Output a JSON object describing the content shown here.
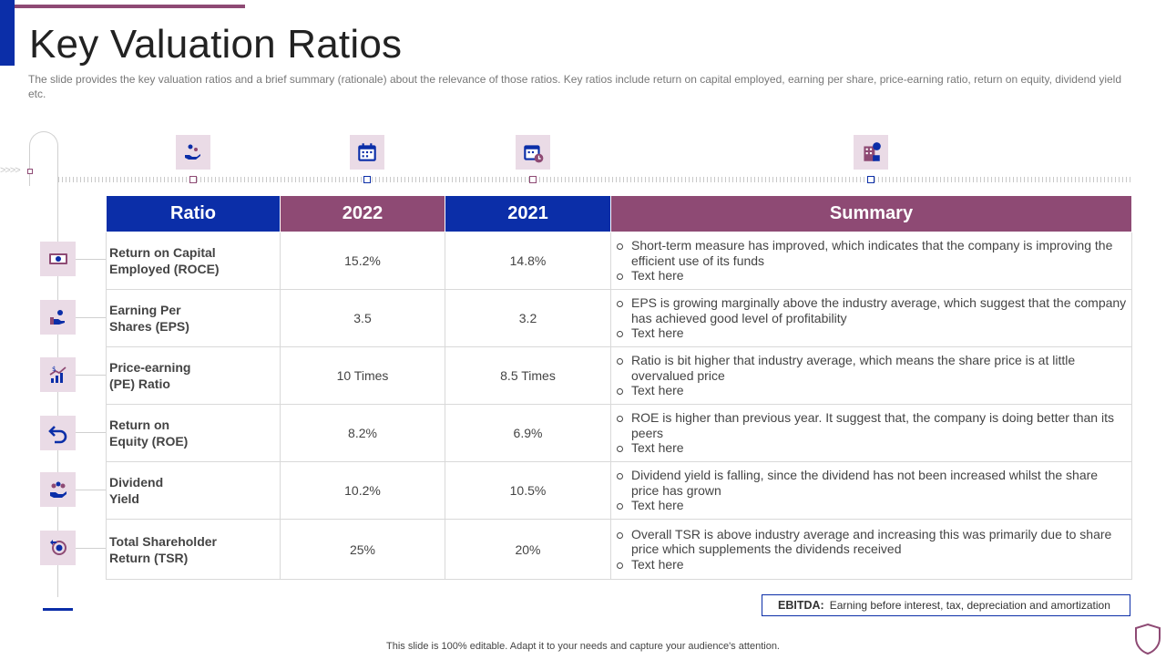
{
  "page": {
    "title": "Key Valuation Ratios",
    "subtitle": "The slide provides the key valuation ratios and a brief summary (rationale) about the relevance of those ratios. Key ratios include return on capital employed, earning per share, price-earning ratio, return on equity, dividend yield etc."
  },
  "colors": {
    "blue": "#0b2ea8",
    "purple": "#8e4a74",
    "icon_bg": "#eadbe6"
  },
  "header_icons": [
    "hand-coin-icon",
    "calendar-icon",
    "calendar-clock-icon",
    "building-money-icon"
  ],
  "table": {
    "headers": [
      "Ratio",
      "2022",
      "2021",
      "Summary"
    ],
    "rows": [
      {
        "icon": "money-bill-icon",
        "ratio": [
          "Return on Capital",
          "Employed (ROCE)"
        ],
        "y2022": "15.2%",
        "y2021": "14.8%",
        "summary": [
          "Short-term measure has improved, which indicates that the company is improving the efficient use of its funds",
          "Text here"
        ]
      },
      {
        "icon": "hand-coin-icon",
        "ratio": [
          "Earning Per",
          "Shares (EPS)"
        ],
        "y2022": "3.5",
        "y2021": "3.2",
        "summary": [
          "EPS is growing marginally above the industry average, which suggest that the company has achieved good level of profitability",
          "Text here"
        ]
      },
      {
        "icon": "growth-chart-icon",
        "ratio": [
          "Price-earning",
          "(PE) Ratio"
        ],
        "y2022": "10 Times",
        "y2021": "8.5 Times",
        "summary": [
          "Ratio is bit higher that industry average, which means the share price is at little overvalued price",
          "Text here"
        ]
      },
      {
        "icon": "return-arrow-icon",
        "ratio": [
          "Return on",
          "Equity (ROE)"
        ],
        "y2022": "8.2%",
        "y2021": "6.9%",
        "summary": [
          "ROE is higher than previous year. It suggest that, the company is doing better than its peers",
          "Text here"
        ]
      },
      {
        "icon": "dividend-hand-icon",
        "ratio": [
          "Dividend",
          "Yield"
        ],
        "y2022": "10.2%",
        "y2021": "10.5%",
        "summary": [
          "Dividend yield is falling, since the dividend has not been increased whilst the share price has grown",
          "Text here"
        ]
      },
      {
        "icon": "shareholder-return-icon",
        "ratio": [
          "Total Shareholder",
          "Return (TSR)"
        ],
        "y2022": "25%",
        "y2021": "20%",
        "summary": [
          "Overall TSR is above industry average and increasing this was primarily due to share price which supplements the dividends received",
          "Text here"
        ]
      }
    ]
  },
  "ebitda": {
    "label": "EBITDA:",
    "text": "Earning before interest, tax, depreciation and amortization"
  },
  "footer": "This slide is 100% editable. Adapt it to your needs and capture your audience's attention."
}
